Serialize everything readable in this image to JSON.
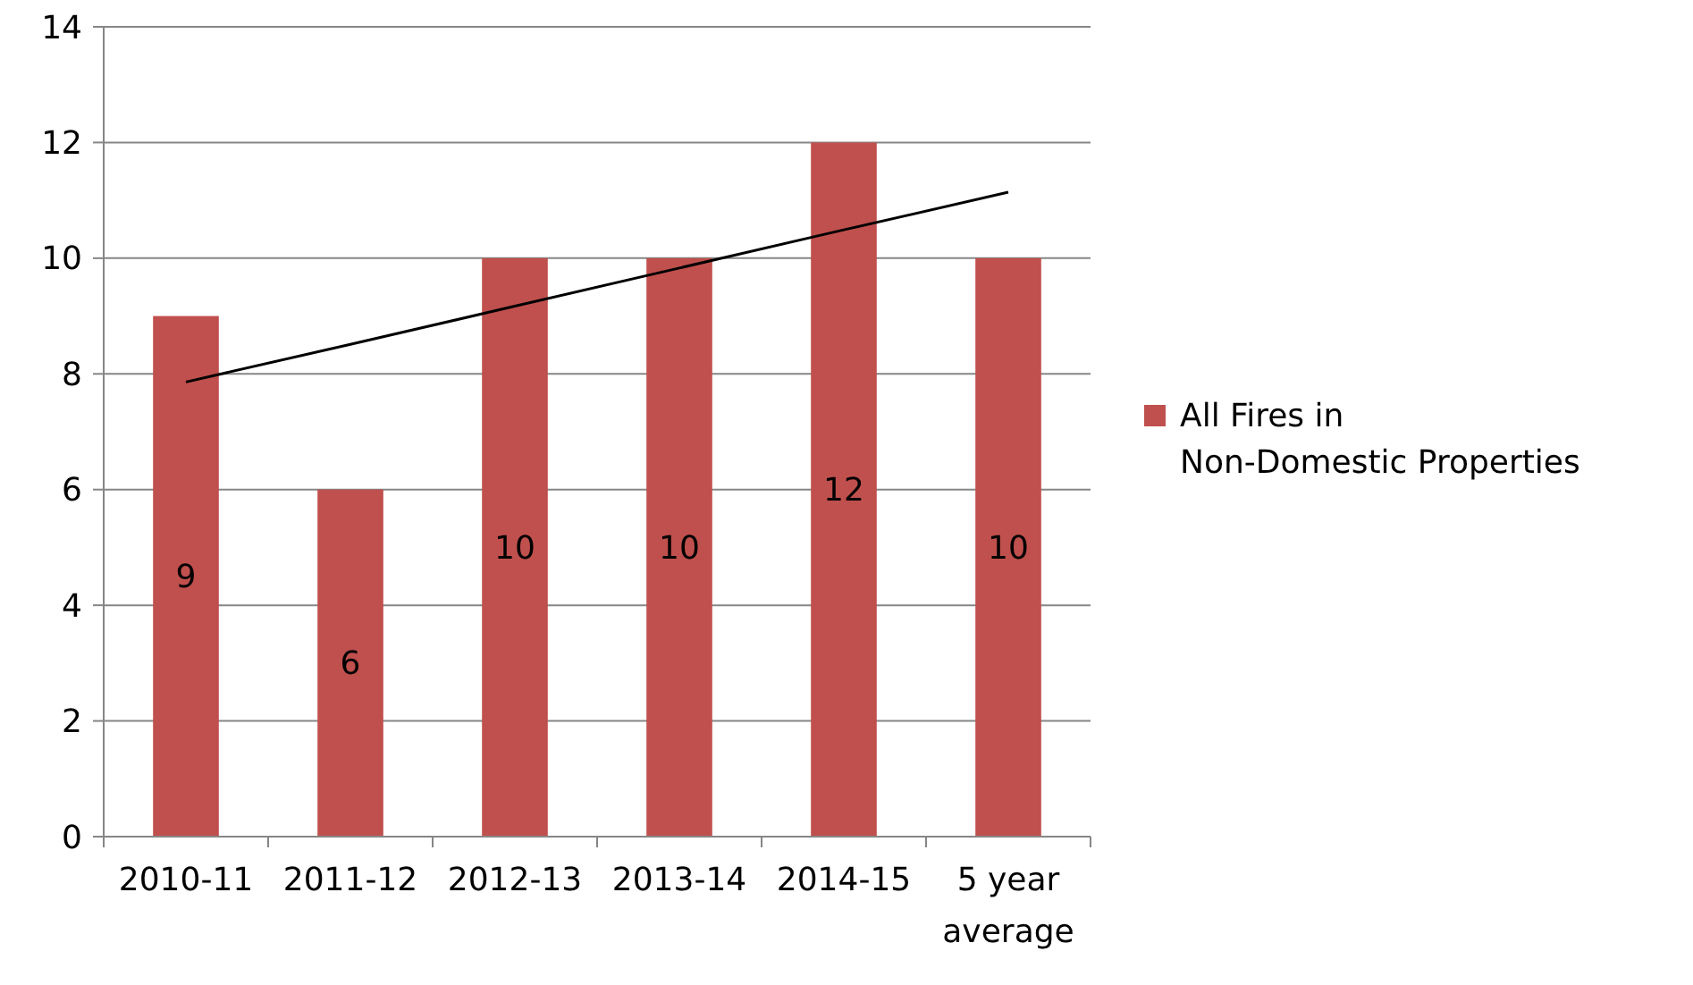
{
  "chart_data": {
    "type": "bar",
    "categories": [
      "2010-11",
      "2011-12",
      "2012-13",
      "2013-14",
      "2014-15",
      "5 year average"
    ],
    "series": [
      {
        "name": "All Fires in Non-Domestic Properties",
        "color": "#c0504d",
        "values": [
          9,
          6,
          10,
          10,
          12,
          10
        ],
        "value_labels": [
          "9",
          "6",
          "10",
          "10",
          "12",
          "10"
        ]
      },
      {
        "type": "line",
        "color": "#000000",
        "values": [
          7.86,
          8.51,
          9.17,
          9.83,
          10.49,
          11.14
        ]
      }
    ],
    "ylim": [
      0,
      14
    ],
    "yticks": [
      0,
      2,
      4,
      6,
      8,
      10,
      12,
      14
    ],
    "grid": "y",
    "legend": "right"
  }
}
